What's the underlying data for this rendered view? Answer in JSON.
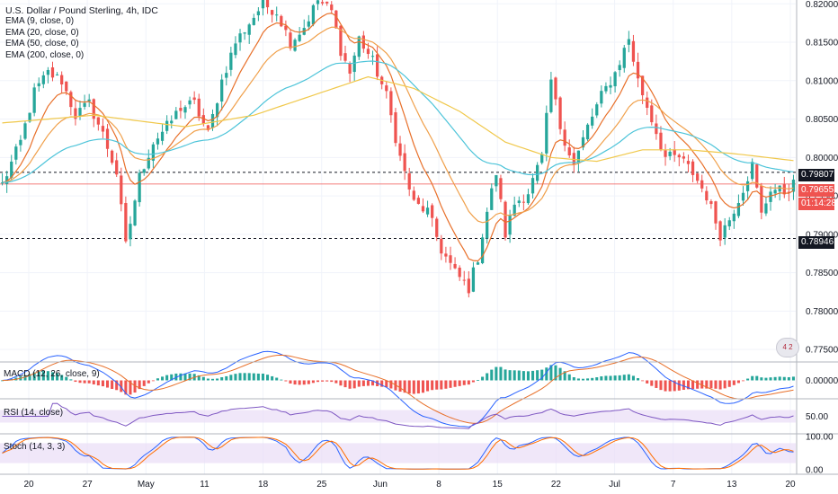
{
  "header": {
    "title": "U.S. Dollar / Pound Sterling, 4h, IDC",
    "indicators": [
      "EMA (9, close, 0)",
      "EMA (20, close, 0)",
      "EMA (50, close, 0)",
      "EMA (200, close, 0)"
    ]
  },
  "panes": {
    "macd_label": "MACD (12, 26, close, 9)",
    "rsi_label": "RSI (14, close)",
    "stoch_label": "Stoch (14, 3, 3)"
  },
  "price_tags": {
    "resistance": "0.79807",
    "current": "0.79655",
    "countdown": "01:14:28",
    "support": "0.78946"
  },
  "events_badge": "4 2",
  "colors": {
    "up": "#26a69a",
    "down": "#ef5350",
    "ema9": "#e8702a",
    "ema20": "#f0a04b",
    "ema50": "#4dc4d9",
    "ema200": "#f0c84b",
    "rsi": "#7e57c2",
    "stoch_k": "#2962ff",
    "stoch_d": "#ff6d00",
    "band": "#e9ddf7"
  },
  "chart_data": [
    {
      "type": "candlestick",
      "title": "U.S. Dollar / Pound Sterling, 4h, IDC",
      "ylim": [
        0.7735,
        0.8205
      ],
      "y_ticks": [
        "0.82000",
        "0.81500",
        "0.81000",
        "0.80500",
        "0.80000",
        "0.79500",
        "0.79000",
        "0.78500",
        "0.78000",
        "0.77500"
      ],
      "x_tick_labels": [
        "20",
        "27",
        "May",
        "11",
        "18",
        "25",
        "Jun",
        "8",
        "15",
        "22",
        "Jul",
        "7",
        "13",
        "20"
      ],
      "horizontal_levels": [
        0.79807,
        0.78946
      ],
      "current_price": 0.79655,
      "close_path": [
        [
          0,
          0.7965
        ],
        [
          4,
          0.802
        ],
        [
          7,
          0.8085
        ],
        [
          10,
          0.811
        ],
        [
          13,
          0.81
        ],
        [
          16,
          0.8055
        ],
        [
          19,
          0.807
        ],
        [
          22,
          0.803
        ],
        [
          25,
          0.798
        ],
        [
          27,
          0.7885
        ],
        [
          30,
          0.7975
        ],
        [
          33,
          0.802
        ],
        [
          36,
          0.804
        ],
        [
          39,
          0.8065
        ],
        [
          42,
          0.807
        ],
        [
          45,
          0.803
        ],
        [
          48,
          0.81
        ],
        [
          51,
          0.815
        ],
        [
          54,
          0.8175
        ],
        [
          57,
          0.82
        ],
        [
          60,
          0.819
        ],
        [
          63,
          0.815
        ],
        [
          66,
          0.817
        ],
        [
          69,
          0.8205
        ],
        [
          72,
          0.819
        ],
        [
          74,
          0.814
        ],
        [
          76,
          0.811
        ],
        [
          78,
          0.8155
        ],
        [
          81,
          0.8125
        ],
        [
          84,
          0.808
        ],
        [
          87,
          0.8
        ],
        [
          90,
          0.794
        ],
        [
          93,
          0.793
        ],
        [
          96,
          0.788
        ],
        [
          99,
          0.785
        ],
        [
          102,
          0.783
        ],
        [
          104,
          0.787
        ],
        [
          106,
          0.793
        ],
        [
          108,
          0.798
        ],
        [
          110,
          0.79
        ],
        [
          112,
          0.794
        ],
        [
          115,
          0.7955
        ],
        [
          118,
          0.8
        ],
        [
          120,
          0.81
        ],
        [
          122,
          0.804
        ],
        [
          125,
          0.799
        ],
        [
          128,
          0.804
        ],
        [
          131,
          0.808
        ],
        [
          134,
          0.811
        ],
        [
          137,
          0.8155
        ],
        [
          139,
          0.81
        ],
        [
          142,
          0.805
        ],
        [
          145,
          0.8
        ],
        [
          148,
          0.8
        ],
        [
          151,
          0.798
        ],
        [
          154,
          0.795
        ],
        [
          157,
          0.79
        ],
        [
          159,
          0.792
        ],
        [
          162,
          0.796
        ],
        [
          164,
          0.799
        ],
        [
          166,
          0.7925
        ],
        [
          168,
          0.796
        ],
        [
          171,
          0.7955
        ],
        [
          173,
          0.7965
        ]
      ],
      "ema200_path": [
        [
          0,
          0.8045
        ],
        [
          20,
          0.8055
        ],
        [
          40,
          0.804
        ],
        [
          55,
          0.8055
        ],
        [
          70,
          0.8085
        ],
        [
          80,
          0.8105
        ],
        [
          90,
          0.809
        ],
        [
          100,
          0.806
        ],
        [
          110,
          0.802
        ],
        [
          120,
          0.8
        ],
        [
          130,
          0.7995
        ],
        [
          140,
          0.801
        ],
        [
          150,
          0.801
        ],
        [
          160,
          0.8005
        ],
        [
          173,
          0.7996
        ]
      ]
    },
    {
      "type": "macd",
      "title": "MACD (12, 26, close, 9)",
      "y_ticks": [
        "0.00000"
      ],
      "ylim": [
        -0.0025,
        0.0025
      ]
    },
    {
      "type": "rsi",
      "title": "RSI (14, close)",
      "y_ticks": [
        "50.00"
      ],
      "ylim": [
        0,
        100
      ],
      "band": [
        30,
        70
      ]
    },
    {
      "type": "stochastic",
      "title": "Stoch (14, 3, 3)",
      "y_ticks": [
        "100.00",
        "0.00"
      ],
      "ylim": [
        0,
        100
      ],
      "band": [
        20,
        80
      ]
    }
  ]
}
